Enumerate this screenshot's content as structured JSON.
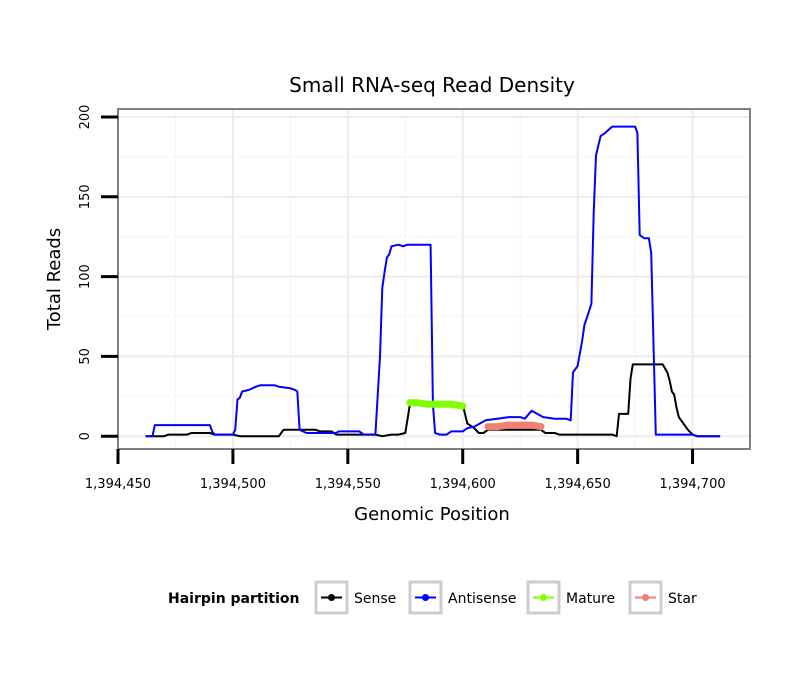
{
  "chart_data": {
    "type": "line",
    "title": "Small RNA-seq Read Density",
    "xlabel": "Genomic Position",
    "ylabel": "Total Reads",
    "xlim": [
      1394450,
      1394725
    ],
    "ylim": [
      -8,
      205
    ],
    "x_ticks": [
      1394450,
      1394500,
      1394550,
      1394600,
      1394650,
      1394700
    ],
    "x_tick_labels": [
      "1,394,450",
      "1,394,500",
      "1,394,550",
      "1,394,600",
      "1,394,650",
      "1,394,700"
    ],
    "y_ticks": [
      0,
      50,
      100,
      150,
      200
    ],
    "y_tick_labels": [
      "0",
      "50",
      "100",
      "150",
      "200"
    ],
    "grid": true,
    "legend": {
      "title": "Hairpin partition",
      "position": "bottom",
      "entries": [
        {
          "label": "Sense",
          "color": "#000000"
        },
        {
          "label": "Antisense",
          "color": "#0000ff"
        },
        {
          "label": "Mature",
          "color": "#7fff00"
        },
        {
          "label": "Star",
          "color": "#f08070"
        }
      ]
    },
    "series": [
      {
        "name": "Sense",
        "color": "#000000",
        "points": [
          [
            1394462,
            0
          ],
          [
            1394470,
            0
          ],
          [
            1394472,
            1
          ],
          [
            1394480,
            1
          ],
          [
            1394482,
            2
          ],
          [
            1394490,
            2
          ],
          [
            1394492,
            1
          ],
          [
            1394500,
            1
          ],
          [
            1394503,
            0
          ],
          [
            1394520,
            0
          ],
          [
            1394522,
            4
          ],
          [
            1394536,
            4
          ],
          [
            1394538,
            3
          ],
          [
            1394543,
            3
          ],
          [
            1394545,
            1
          ],
          [
            1394555,
            1
          ],
          [
            1394557,
            1
          ],
          [
            1394562,
            1
          ],
          [
            1394565,
            0
          ],
          [
            1394569,
            1
          ],
          [
            1394572,
            1
          ],
          [
            1394575,
            2
          ],
          [
            1394577,
            20
          ],
          [
            1394600,
            20
          ],
          [
            1394602,
            8
          ],
          [
            1394605,
            5
          ],
          [
            1394607,
            2
          ],
          [
            1394609,
            2
          ],
          [
            1394611,
            4
          ],
          [
            1394634,
            4
          ],
          [
            1394636,
            2
          ],
          [
            1394640,
            2
          ],
          [
            1394642,
            1
          ],
          [
            1394665,
            1
          ],
          [
            1394667,
            0
          ],
          [
            1394668,
            14
          ],
          [
            1394672,
            14
          ],
          [
            1394673,
            36
          ],
          [
            1394674,
            45
          ],
          [
            1394687,
            45
          ],
          [
            1394689,
            40
          ],
          [
            1394690,
            35
          ],
          [
            1394691,
            28
          ],
          [
            1394692,
            26
          ],
          [
            1394693,
            18
          ],
          [
            1394694,
            12
          ],
          [
            1394696,
            8
          ],
          [
            1394698,
            4
          ],
          [
            1394700,
            1
          ],
          [
            1394702,
            0
          ],
          [
            1394712,
            0
          ]
        ]
      },
      {
        "name": "Antisense",
        "color": "#0000ff",
        "points": [
          [
            1394462,
            0
          ],
          [
            1394465,
            0
          ],
          [
            1394466,
            7
          ],
          [
            1394490,
            7
          ],
          [
            1394491,
            3
          ],
          [
            1394492,
            1
          ],
          [
            1394500,
            1
          ],
          [
            1394501,
            4
          ],
          [
            1394502,
            23
          ],
          [
            1394503,
            24
          ],
          [
            1394504,
            28
          ],
          [
            1394507,
            29
          ],
          [
            1394510,
            31
          ],
          [
            1394512,
            32
          ],
          [
            1394518,
            32
          ],
          [
            1394520,
            31
          ],
          [
            1394525,
            30
          ],
          [
            1394527,
            29
          ],
          [
            1394528,
            28
          ],
          [
            1394529,
            4
          ],
          [
            1394532,
            2
          ],
          [
            1394545,
            2
          ],
          [
            1394546,
            3
          ],
          [
            1394555,
            3
          ],
          [
            1394557,
            1
          ],
          [
            1394562,
            1
          ],
          [
            1394564,
            50
          ],
          [
            1394565,
            93
          ],
          [
            1394566,
            103
          ],
          [
            1394567,
            112
          ],
          [
            1394568,
            114
          ],
          [
            1394569,
            119
          ],
          [
            1394572,
            120
          ],
          [
            1394574,
            119
          ],
          [
            1394576,
            120
          ],
          [
            1394586,
            120
          ],
          [
            1394587,
            20
          ],
          [
            1394588,
            2
          ],
          [
            1394590,
            1
          ],
          [
            1394593,
            1
          ],
          [
            1394595,
            3
          ],
          [
            1394600,
            3
          ],
          [
            1394602,
            5
          ],
          [
            1394605,
            6
          ],
          [
            1394610,
            10
          ],
          [
            1394615,
            11
          ],
          [
            1394620,
            12
          ],
          [
            1394625,
            12
          ],
          [
            1394627,
            11
          ],
          [
            1394630,
            16
          ],
          [
            1394635,
            12
          ],
          [
            1394640,
            11
          ],
          [
            1394645,
            11
          ],
          [
            1394647,
            10
          ],
          [
            1394648,
            40
          ],
          [
            1394650,
            44
          ],
          [
            1394652,
            60
          ],
          [
            1394653,
            70
          ],
          [
            1394654,
            74
          ],
          [
            1394656,
            83
          ],
          [
            1394657,
            140
          ],
          [
            1394658,
            176
          ],
          [
            1394660,
            188
          ],
          [
            1394662,
            190
          ],
          [
            1394665,
            194
          ],
          [
            1394675,
            194
          ],
          [
            1394676,
            190
          ],
          [
            1394677,
            126
          ],
          [
            1394679,
            124
          ],
          [
            1394681,
            124
          ],
          [
            1394682,
            115
          ],
          [
            1394684,
            1
          ],
          [
            1394700,
            1
          ],
          [
            1394702,
            0
          ],
          [
            1394712,
            0
          ]
        ]
      },
      {
        "name": "Mature",
        "color": "#7fff00",
        "points": [
          [
            1394577,
            21
          ],
          [
            1394580,
            21
          ],
          [
            1394585,
            20
          ],
          [
            1394590,
            20
          ],
          [
            1394595,
            20
          ],
          [
            1394600,
            19
          ]
        ]
      },
      {
        "name": "Star",
        "color": "#f08070",
        "points": [
          [
            1394611,
            6
          ],
          [
            1394615,
            6
          ],
          [
            1394620,
            7
          ],
          [
            1394625,
            7
          ],
          [
            1394630,
            7
          ],
          [
            1394634,
            6
          ]
        ]
      }
    ]
  }
}
